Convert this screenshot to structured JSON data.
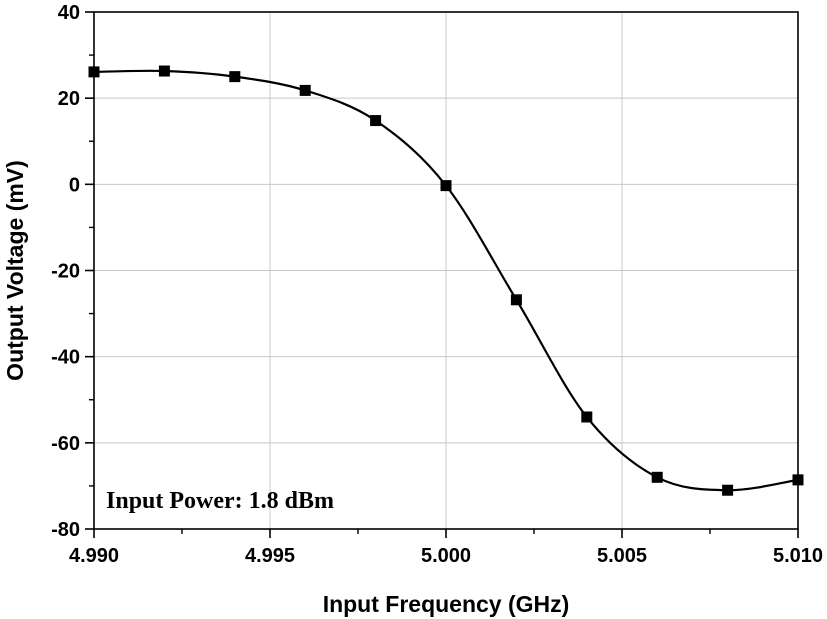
{
  "chart_data": {
    "type": "line",
    "title": "",
    "xlabel": "Input Frequency (GHz)",
    "ylabel": "Output Voltage (mV)",
    "xlim": [
      4.99,
      5.01
    ],
    "ylim": [
      -80,
      40
    ],
    "grid": true,
    "legend": "none",
    "x_ticks": [
      "4.990",
      "4.995",
      "5.000",
      "5.005",
      "5.010"
    ],
    "y_ticks": [
      "40",
      "20",
      "0",
      "-20",
      "-40",
      "-60",
      "-80"
    ],
    "annotation": "Input Power: 1.8 dBm",
    "series": [
      {
        "marker": "square",
        "color": "#000000",
        "x": [
          4.99,
          4.992,
          4.994,
          4.996,
          4.998,
          5.0,
          5.002,
          5.004,
          5.006,
          5.008,
          5.01
        ],
        "y": [
          26.1,
          26.3,
          25.0,
          21.8,
          14.8,
          -0.3,
          -26.8,
          -54.0,
          -68.0,
          -71.0,
          -68.6
        ]
      }
    ]
  }
}
